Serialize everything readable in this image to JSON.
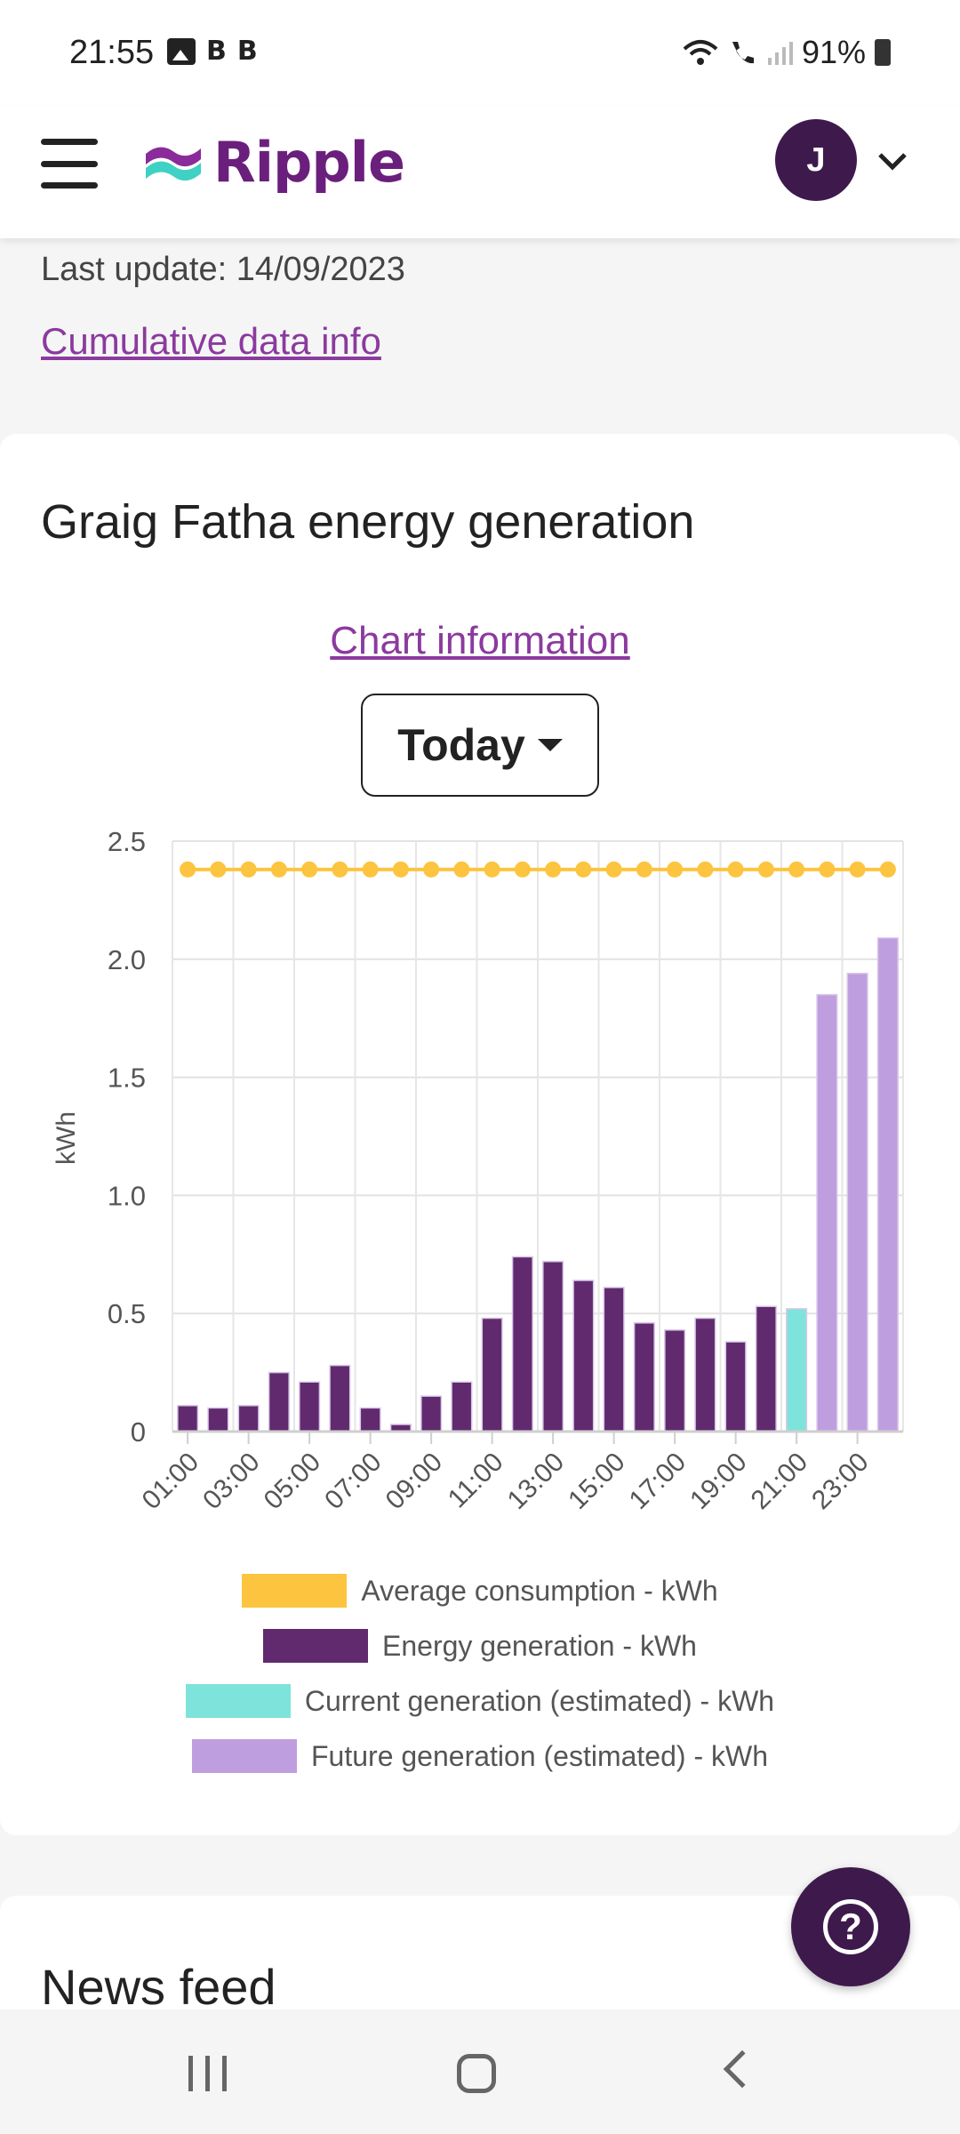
{
  "status_bar": {
    "time": "21:55",
    "b_badge": "B",
    "battery": "91%"
  },
  "header": {
    "logo_text": "Ripple",
    "avatar_initial": "J"
  },
  "page": {
    "last_update": "Last update: 14/09/2023",
    "cumulative_link": "Cumulative data info"
  },
  "card": {
    "title": "Graig Fatha energy generation",
    "chart_info_link": "Chart information",
    "period_selected": "Today"
  },
  "colors": {
    "brand": "#6b1f7c",
    "avg_consumption": "#fcc43f",
    "energy_generation": "#612a6e",
    "current_generation": "#7ee3da",
    "future_generation": "#bf9ee0"
  },
  "chart_data": {
    "type": "bar",
    "ylabel": "kWh",
    "ylim": [
      0,
      2.5
    ],
    "yticks": [
      "0",
      "0.5",
      "1.0",
      "1.5",
      "2.0",
      "2.5"
    ],
    "hours": [
      "01:00",
      "02:00",
      "03:00",
      "04:00",
      "05:00",
      "06:00",
      "07:00",
      "08:00",
      "09:00",
      "10:00",
      "11:00",
      "12:00",
      "13:00",
      "14:00",
      "15:00",
      "16:00",
      "17:00",
      "18:00",
      "19:00",
      "20:00",
      "21:00",
      "22:00",
      "23:00",
      "24:00"
    ],
    "xtick_labels": [
      "01:00",
      "03:00",
      "05:00",
      "07:00",
      "09:00",
      "11:00",
      "13:00",
      "15:00",
      "17:00",
      "19:00",
      "21:00",
      "23:00"
    ],
    "values": [
      0.11,
      0.1,
      0.11,
      0.25,
      0.21,
      0.28,
      0.1,
      0.03,
      0.15,
      0.21,
      0.48,
      0.74,
      0.72,
      0.64,
      0.61,
      0.46,
      0.43,
      0.48,
      0.38,
      0.53,
      0.52,
      1.85,
      1.94,
      2.09
    ],
    "bar_kinds": [
      "actual",
      "actual",
      "actual",
      "actual",
      "actual",
      "actual",
      "actual",
      "actual",
      "actual",
      "actual",
      "actual",
      "actual",
      "actual",
      "actual",
      "actual",
      "actual",
      "actual",
      "actual",
      "actual",
      "actual",
      "current",
      "future",
      "future",
      "future"
    ],
    "average_consumption": 2.38,
    "legend": [
      {
        "key": "avg_consumption",
        "label": "Average consumption - kWh"
      },
      {
        "key": "energy_generation",
        "label": "Energy generation - kWh"
      },
      {
        "key": "current_generation",
        "label": "Current generation (estimated) - kWh"
      },
      {
        "key": "future_generation",
        "label": "Future generation (estimated) - kWh"
      }
    ]
  },
  "news": {
    "title": "News feed"
  }
}
